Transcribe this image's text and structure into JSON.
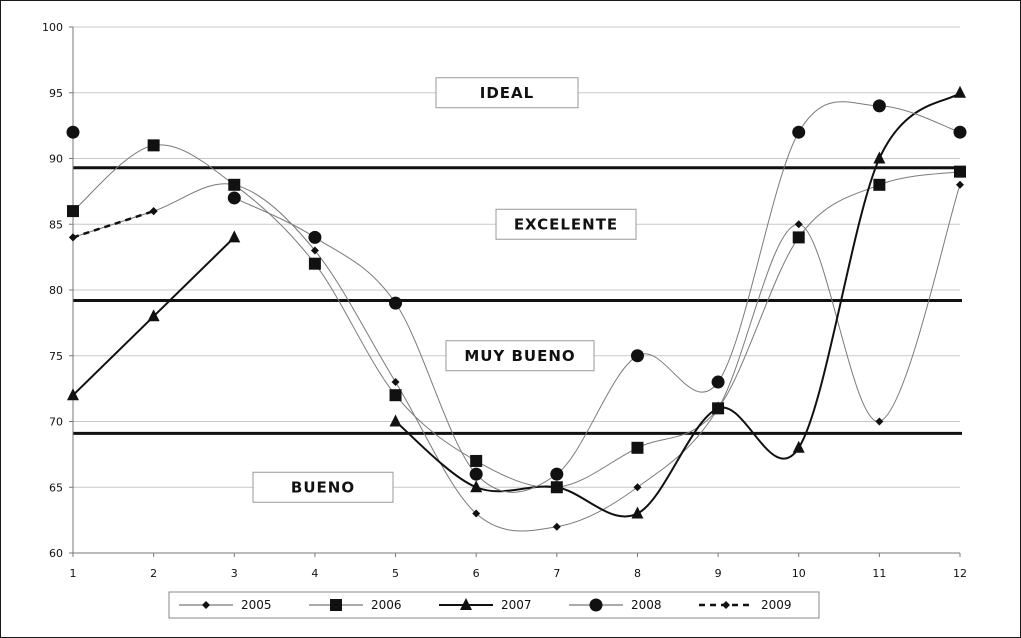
{
  "chart_data": {
    "type": "line",
    "title": "",
    "xlabel": "",
    "ylabel": "",
    "x": [
      1,
      2,
      3,
      4,
      5,
      6,
      7,
      8,
      9,
      10,
      11,
      12
    ],
    "xlim": [
      1,
      12
    ],
    "ylim": [
      60,
      100
    ],
    "y_ticks": [
      60,
      65,
      70,
      75,
      80,
      85,
      90,
      95,
      100
    ],
    "x_ticks": [
      1,
      2,
      3,
      4,
      5,
      6,
      7,
      8,
      9,
      10,
      11,
      12
    ],
    "grid": "horizontal",
    "legend_position": "bottom",
    "series": [
      {
        "name": "2005",
        "marker": "diamond",
        "style": "thin-smooth",
        "color": "#7a7a7a",
        "values": [
          84,
          86,
          88,
          83,
          73,
          63,
          62,
          65,
          71,
          85,
          70,
          88
        ]
      },
      {
        "name": "2006",
        "marker": "square",
        "style": "thin-smooth",
        "color": "#7a7a7a",
        "values": [
          86,
          91,
          88,
          82,
          72,
          67,
          65,
          68,
          71,
          84,
          88,
          89
        ]
      },
      {
        "name": "2007",
        "marker": "triangle",
        "style": "thick-smooth",
        "color": "#111111",
        "values": [
          72,
          78,
          84,
          null,
          70,
          65,
          65,
          63,
          71,
          68,
          90,
          95
        ]
      },
      {
        "name": "2008",
        "marker": "circle",
        "style": "thin-smooth",
        "color": "#7a7a7a",
        "values": [
          92,
          null,
          87,
          84,
          79,
          66,
          66,
          75,
          73,
          92,
          94,
          92
        ]
      },
      {
        "name": "2009",
        "marker": "diamond",
        "style": "dashed",
        "color": "#111111",
        "values": [
          84,
          86,
          null,
          null,
          null,
          null,
          null,
          null,
          null,
          null,
          null,
          null
        ]
      }
    ],
    "threshold_lines": [
      89.3,
      79.2,
      69.1
    ],
    "zones": [
      {
        "label": "IDEAL",
        "y": 95
      },
      {
        "label": "EXCELENTE",
        "y": 85
      },
      {
        "label": "MUY BUENO",
        "y": 75
      },
      {
        "label": "BUENO",
        "y": 65
      }
    ]
  },
  "colors": {
    "grid": "#c8c8c8",
    "axis": "#777777",
    "threshold": "#111111",
    "thin_series": "#7a7a7a",
    "marker": "#111111"
  }
}
